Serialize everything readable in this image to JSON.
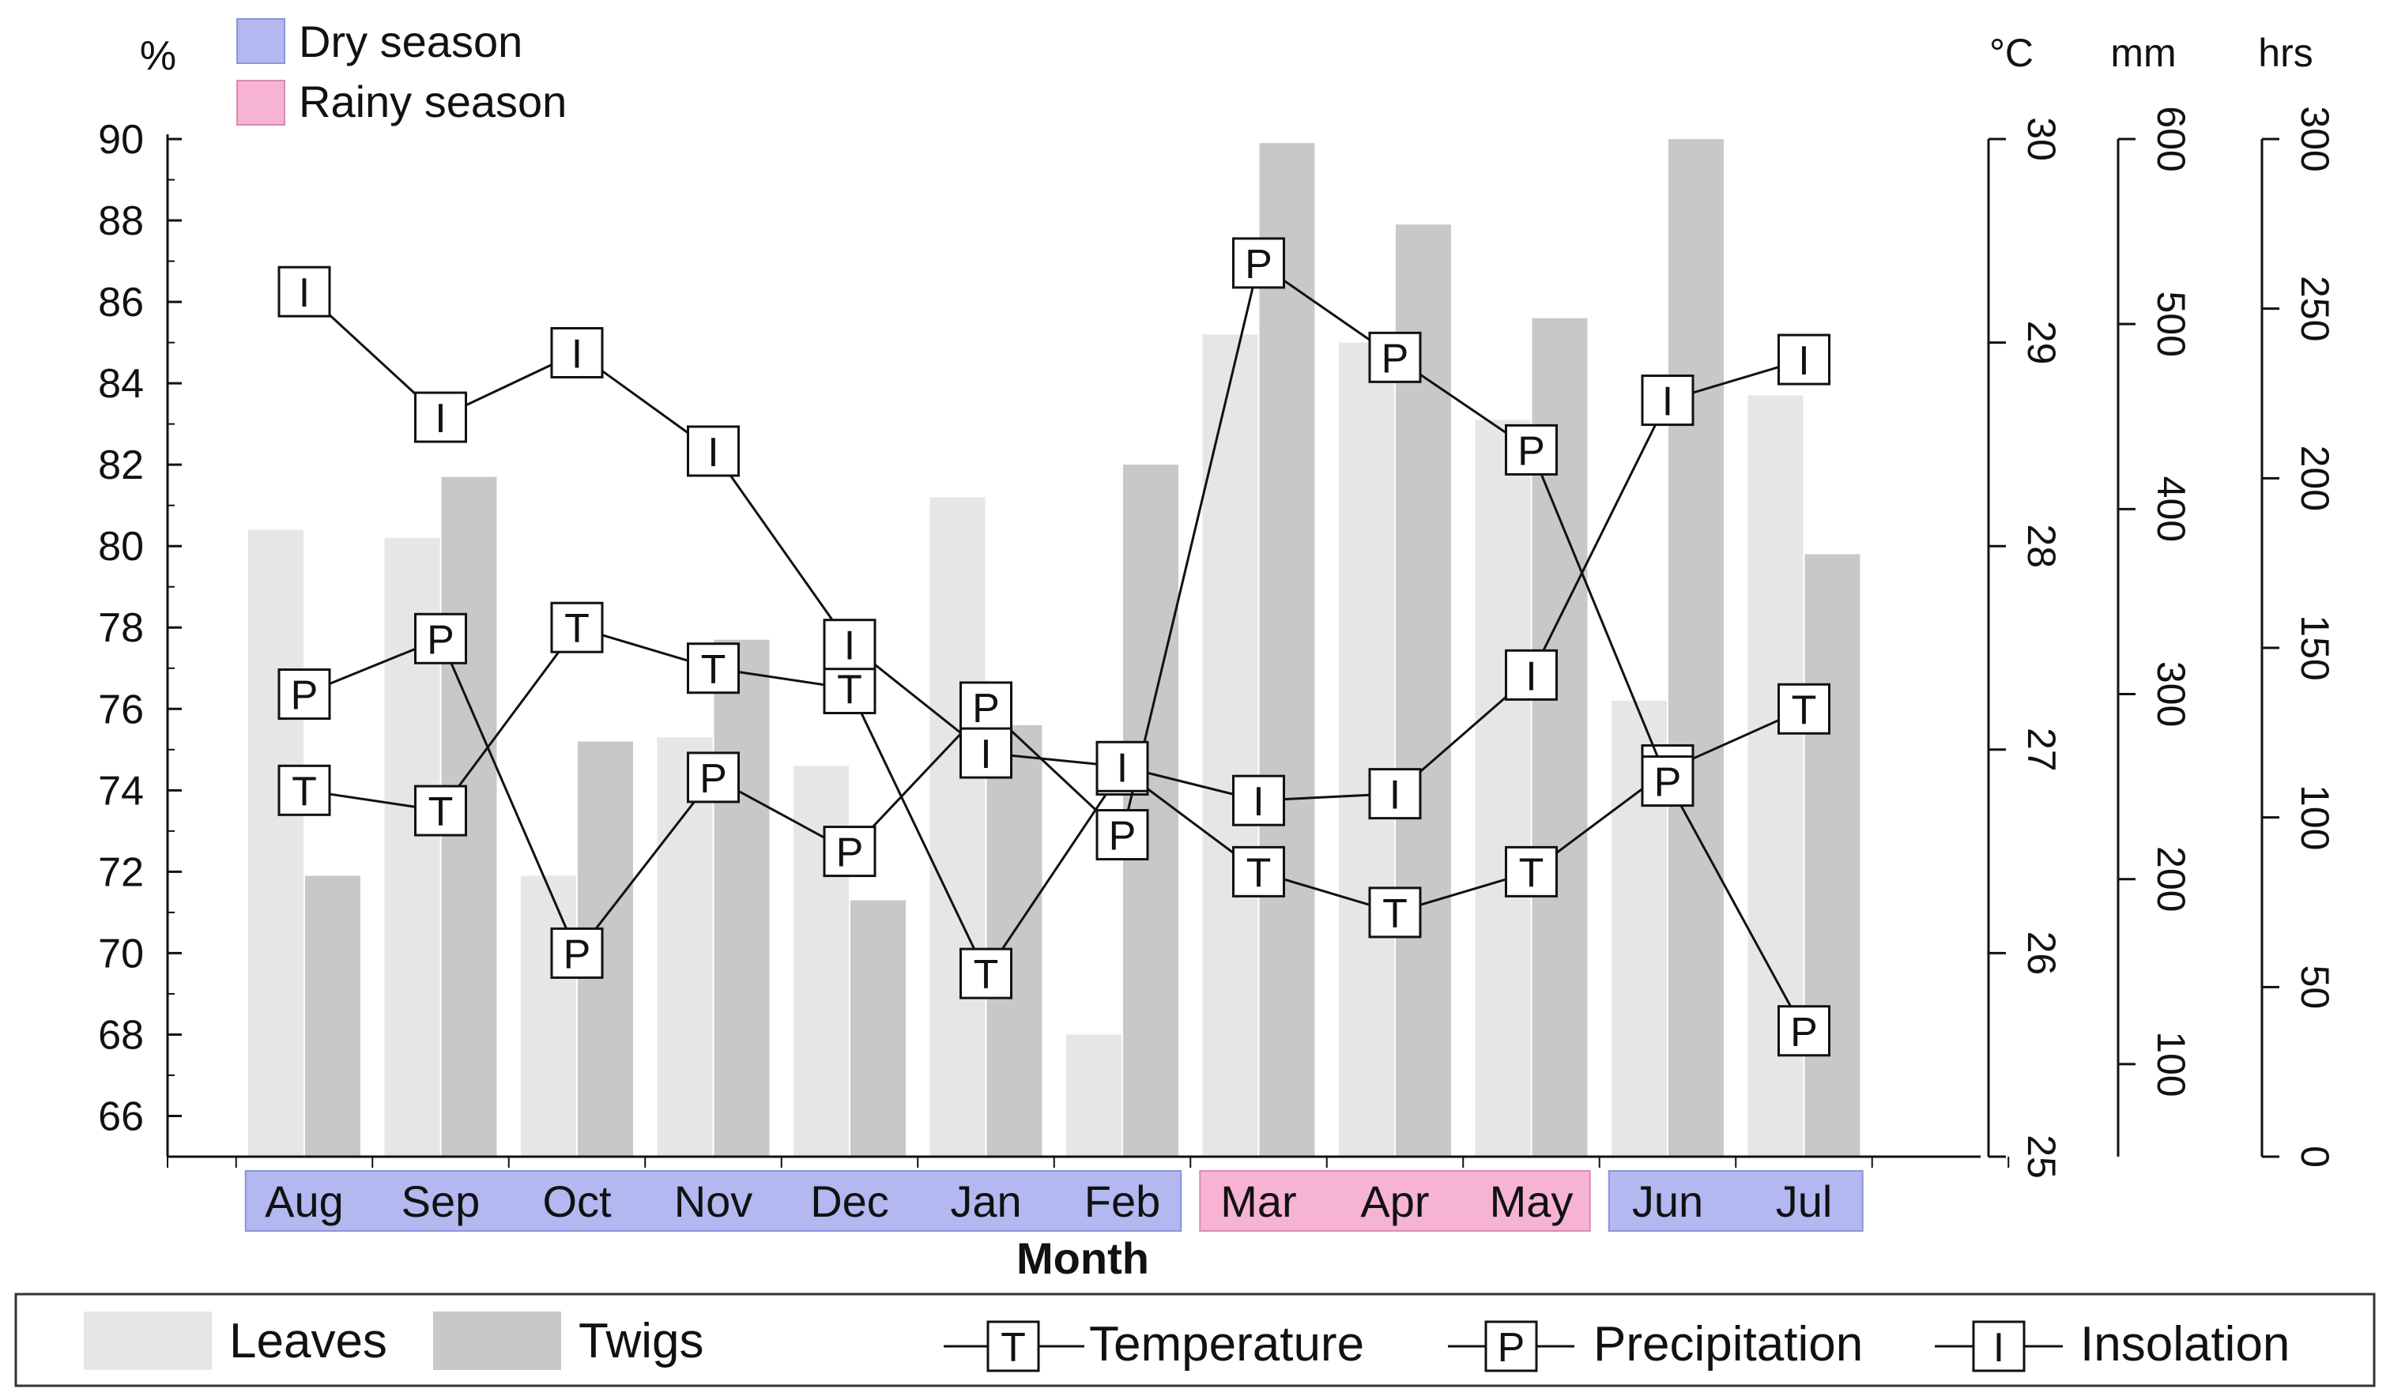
{
  "chart_data": {
    "type": "bar",
    "categories": [
      "Aug",
      "Sep",
      "Oct",
      "Nov",
      "Dec",
      "Jan",
      "Feb",
      "Mar",
      "Apr",
      "May",
      "Jun",
      "Jul"
    ],
    "season_legend": {
      "dry_label": "Dry season",
      "rainy_label": "Rainy season",
      "dry_color": "#b3b8f0",
      "rainy_color": "#f7b3d3"
    },
    "seasons": [
      "dry",
      "dry",
      "dry",
      "dry",
      "dry",
      "dry",
      "dry",
      "rainy",
      "rainy",
      "rainy",
      "dry",
      "dry"
    ],
    "xlabel": "Month",
    "axes": {
      "left": {
        "label": "%",
        "ylim": [
          65,
          90
        ],
        "ticks": [
          "66",
          "68",
          "70",
          "72",
          "74",
          "76",
          "78",
          "80",
          "82",
          "84",
          "86",
          "88",
          "90"
        ]
      },
      "temperature": {
        "label": "°C",
        "ylim": [
          25,
          30
        ],
        "ticks": [
          "25",
          "26",
          "27",
          "28",
          "29",
          "30"
        ]
      },
      "precipitation": {
        "label": "mm",
        "ylim": [
          50,
          600
        ],
        "ticks": [
          "100",
          "200",
          "300",
          "400",
          "500",
          "600"
        ]
      },
      "insolation": {
        "label": "hrs",
        "ylim": [
          0,
          300
        ],
        "ticks": [
          "0",
          "50",
          "100",
          "150",
          "200",
          "250",
          "300"
        ]
      }
    },
    "bar_series": [
      {
        "name": "Leaves",
        "color": "#e6e6e6",
        "values": [
          80.4,
          80.2,
          71.9,
          75.3,
          74.6,
          81.2,
          68.0,
          85.2,
          85.0,
          83.1,
          76.2,
          83.7
        ]
      },
      {
        "name": "Twigs",
        "color": "#c8c8c8",
        "values": [
          71.9,
          81.7,
          75.2,
          77.7,
          71.3,
          75.6,
          82.0,
          89.9,
          87.9,
          85.6,
          90.0,
          79.8
        ]
      }
    ],
    "line_series": [
      {
        "name": "Temperature",
        "marker": "T",
        "axis": "temperature",
        "values": [
          26.8,
          26.7,
          27.6,
          27.4,
          27.3,
          25.9,
          26.9,
          26.4,
          26.2,
          26.4,
          26.9,
          27.2
        ]
      },
      {
        "name": "Precipitation",
        "marker": "P",
        "axis": "precipitation",
        "values": [
          300,
          330,
          160,
          255,
          215,
          293,
          224,
          533,
          482,
          432,
          253,
          118
        ]
      },
      {
        "name": "Insolation",
        "marker": "I",
        "axis": "insolation",
        "values": [
          255,
          218,
          237,
          208,
          151,
          119,
          115,
          105,
          107,
          142,
          223,
          235
        ]
      }
    ],
    "legend": {
      "leaves": "Leaves",
      "twigs": "Twigs",
      "temperature": "Temperature",
      "precipitation": "Precipitation",
      "insolation": "Insolation",
      "t_marker": "T",
      "p_marker": "P",
      "i_marker": "I"
    }
  }
}
